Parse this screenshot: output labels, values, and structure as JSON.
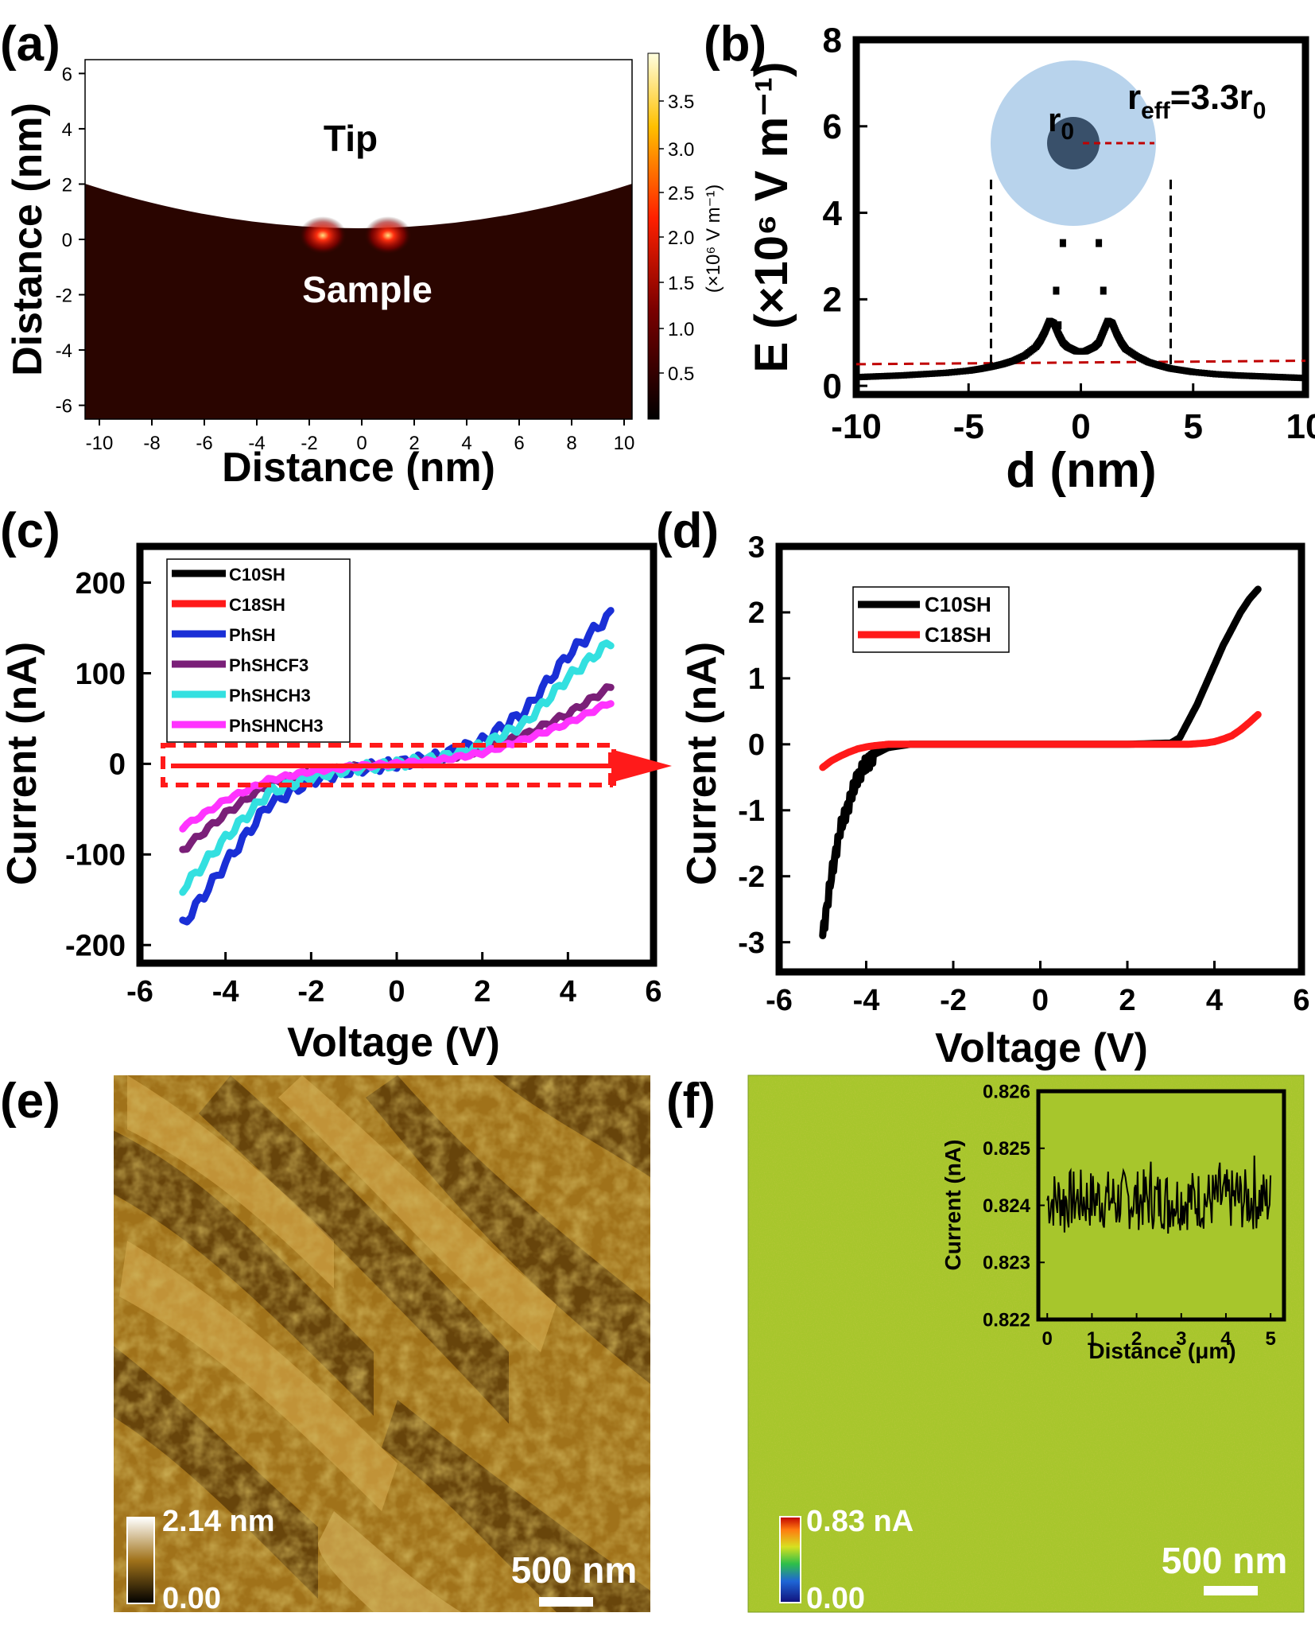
{
  "colors": {
    "black": "#000000",
    "red": "#ff1a1a",
    "darkred": "#c00000",
    "blue": "#1a2fd6",
    "purple": "#7a1f78",
    "cyan": "#33e0e0",
    "magenta": "#ff33ff",
    "field_bg": "#2a0500",
    "afm_mid": "#a0721a",
    "green_map": "#a7c62c",
    "circle_outer": "#b8d3ec",
    "circle_inner": "#39506a"
  },
  "panels": {
    "a": {
      "label": "(a)",
      "tip_text": "Tip",
      "sample_text": "Sample"
    },
    "b": {
      "label": "(b)",
      "r_eff_main": "r",
      "r_eff_sub": "eff",
      "r_eff_rest": "=3.3r",
      "r_eff_sub0": "0",
      "r0_main": "r",
      "r0_sub": "0"
    },
    "c": {
      "label": "(c)"
    },
    "d": {
      "label": "(d)"
    },
    "e": {
      "label": "(e)",
      "scale_max": "2.14 nm",
      "scale_min": "0.00",
      "scale_bar": "500 nm"
    },
    "f": {
      "label": "(f)",
      "scale_max": "0.83 nA",
      "scale_min": "0.00",
      "scale_bar": "500 nm"
    }
  },
  "chart_data": [
    {
      "panel": "a",
      "type": "heatmap",
      "xlabel": "Distance (nm)",
      "ylabel": "Distance (nm)",
      "xlim": [
        -10,
        10
      ],
      "ylim": [
        -6.5,
        6.5
      ],
      "x_ticks": [
        "-10",
        "-8",
        "-6",
        "-4",
        "-2",
        "0",
        "2",
        "4",
        "6",
        "8",
        "10"
      ],
      "y_ticks": [
        "6",
        "4",
        "2",
        "0",
        "-2",
        "-4",
        "-6"
      ],
      "colorbar_ticks": [
        "3.5",
        "3.0",
        "2.5",
        "2.0",
        "1.5",
        "1.0",
        "0.5"
      ],
      "colorbar_label": "(×10⁶ V m⁻¹)",
      "hotspots_x": [
        -1.3,
        1.0
      ]
    },
    {
      "panel": "b",
      "type": "scatter",
      "xlabel": "d (nm)",
      "ylabel": "E (×10⁶ V m⁻¹)",
      "xlim": [
        -10,
        10
      ],
      "ylim": [
        -0.2,
        8
      ],
      "x_ticks": [
        "-10",
        "-5",
        "0",
        "5",
        "10"
      ],
      "y_ticks": [
        "0",
        "2",
        "4",
        "6",
        "8"
      ],
      "x": [
        -10,
        -9,
        -8,
        -7,
        -6,
        -5,
        -4.5,
        -4,
        -3.5,
        -3,
        -2.5,
        -2,
        -1.8,
        -1.6,
        -1.4,
        -1.2,
        -1.0,
        -0.8,
        -0.6,
        -0.4,
        -0.2,
        0,
        0.2,
        0.4,
        0.6,
        0.8,
        1.0,
        1.2,
        1.4,
        1.6,
        1.8,
        2,
        2.5,
        3,
        3.5,
        4,
        4.5,
        5,
        6,
        7,
        8,
        9,
        10
      ],
      "y": [
        0.2,
        0.22,
        0.24,
        0.27,
        0.3,
        0.35,
        0.39,
        0.44,
        0.5,
        0.58,
        0.7,
        0.9,
        1.05,
        1.25,
        1.5,
        1.45,
        1.2,
        1.0,
        0.9,
        0.85,
        0.8,
        0.8,
        0.8,
        0.85,
        0.9,
        1.0,
        1.25,
        1.5,
        1.45,
        1.2,
        1.0,
        0.85,
        0.68,
        0.55,
        0.47,
        0.4,
        0.36,
        0.32,
        0.27,
        0.24,
        0.22,
        0.2,
        0.18
      ],
      "outliers_x": [
        -1.1,
        -0.8,
        -1.0,
        0.8,
        1.0
      ],
      "outliers_y": [
        2.2,
        3.3,
        1.4,
        3.3,
        2.2
      ],
      "threshold_y": [
        0.5,
        0.58
      ],
      "vlines_x": [
        -4,
        4
      ]
    },
    {
      "panel": "c",
      "type": "line",
      "xlabel": "Voltage (V)",
      "ylabel": "Current (nA)",
      "xlim": [
        -6,
        6
      ],
      "ylim": [
        -220,
        240
      ],
      "x_ticks": [
        "-6",
        "-4",
        "-2",
        "0",
        "2",
        "4",
        "6"
      ],
      "y_ticks": [
        "200",
        "100",
        "0",
        "-100",
        "-200"
      ],
      "x": [
        -5,
        -4,
        -3,
        -2,
        -1,
        0,
        1,
        2,
        3,
        4,
        5
      ],
      "series": [
        {
          "name": "C10SH",
          "values": [
            0,
            0,
            0,
            0,
            0,
            0,
            0,
            0,
            0,
            0,
            0
          ]
        },
        {
          "name": "C18SH",
          "values": [
            0,
            0,
            0,
            0,
            0,
            0,
            0,
            0,
            0,
            0,
            0
          ]
        },
        {
          "name": "PhSH",
          "values": [
            -178,
            -110,
            -45,
            -18,
            -6,
            0,
            8,
            25,
            58,
            120,
            165
          ]
        },
        {
          "name": "PhSHCF3",
          "values": [
            -95,
            -55,
            -22,
            -10,
            -4,
            0,
            5,
            15,
            32,
            55,
            85
          ]
        },
        {
          "name": "PhSHCH3",
          "values": [
            -138,
            -82,
            -32,
            -14,
            -5,
            0,
            6,
            20,
            45,
            95,
            135
          ]
        },
        {
          "name": "PhSHNCH3",
          "values": [
            -70,
            -40,
            -18,
            -8,
            -3,
            0,
            4,
            12,
            27,
            45,
            68
          ]
        }
      ],
      "legend": "top-left"
    },
    {
      "panel": "d",
      "type": "line",
      "xlabel": "Voltage (V)",
      "ylabel": "Current (nA)",
      "xlim": [
        -6,
        6
      ],
      "ylim": [
        -3.45,
        3
      ],
      "x_ticks": [
        "-6",
        "-4",
        "-2",
        "0",
        "2",
        "4",
        "6"
      ],
      "y_ticks": [
        "3",
        "2",
        "1",
        "0",
        "-1",
        "-2",
        "-3"
      ],
      "x": [
        -5,
        -4.8,
        -4.6,
        -4.4,
        -4.2,
        -4,
        -3.8,
        -3.5,
        -3,
        -2,
        0,
        2,
        3,
        3.2,
        3.4,
        3.6,
        3.8,
        4,
        4.2,
        4.4,
        4.6,
        4.8,
        5
      ],
      "series": [
        {
          "name": "C10SH",
          "values": [
            -2.9,
            -2.0,
            -1.3,
            -0.9,
            -0.5,
            -0.3,
            -0.15,
            -0.05,
            0,
            0,
            0,
            0,
            0.02,
            0.1,
            0.35,
            0.6,
            0.9,
            1.2,
            1.5,
            1.75,
            2.0,
            2.2,
            2.35
          ]
        },
        {
          "name": "C18SH",
          "values": [
            -0.35,
            -0.25,
            -0.18,
            -0.12,
            -0.07,
            -0.04,
            -0.02,
            0,
            0,
            0,
            0,
            0,
            0,
            0,
            0,
            0.01,
            0.02,
            0.04,
            0.08,
            0.13,
            0.22,
            0.33,
            0.45
          ]
        }
      ],
      "legend": "top-left"
    },
    {
      "panel": "f-inset",
      "type": "line",
      "xlabel": "Distance (μm)",
      "ylabel": "Current (nA)",
      "xlim": [
        -0.2,
        5.3
      ],
      "ylim": [
        0.822,
        0.826
      ],
      "x_ticks": [
        "0",
        "1",
        "2",
        "3",
        "4",
        "5"
      ],
      "y_ticks": [
        "0.826",
        "0.825",
        "0.824",
        "0.823",
        "0.822"
      ],
      "mean": 0.8241,
      "noise": 0.0006
    }
  ]
}
